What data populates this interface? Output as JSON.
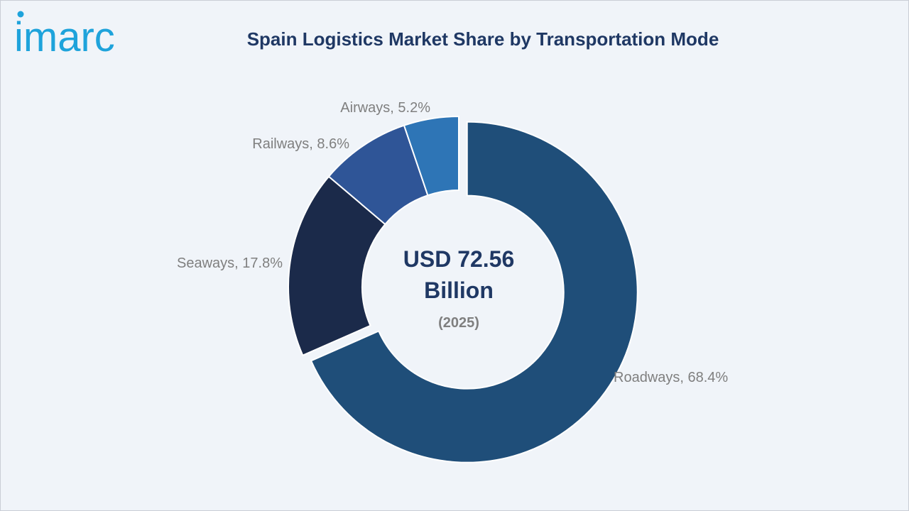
{
  "logo": {
    "text": "imarc"
  },
  "chart_data": {
    "type": "pie",
    "variant": "donut",
    "title": "Spain Logistics Market Share by Transportation Mode",
    "center_label": {
      "value": "USD 72.56",
      "unit": "Billion",
      "year": "(2025)"
    },
    "slices": [
      {
        "label": "Roadways",
        "value": 68.4,
        "display": "Roadways, 68.4%",
        "color": "#1f4e79",
        "exploded": true
      },
      {
        "label": "Seaways",
        "value": 17.8,
        "display": "Seaways, 17.8%",
        "color": "#1b2a4a",
        "exploded": false
      },
      {
        "label": "Railways",
        "value": 8.6,
        "display": "Railways, 8.6%",
        "color": "#2f5597",
        "exploded": false
      },
      {
        "label": "Airways",
        "value": 5.2,
        "display": "Airways, 5.2%",
        "color": "#2e75b6",
        "exploded": false
      }
    ],
    "label_color": "#7f7f7f",
    "center_text_color": "#1f3864",
    "center_year_color": "#7f7f7f"
  }
}
